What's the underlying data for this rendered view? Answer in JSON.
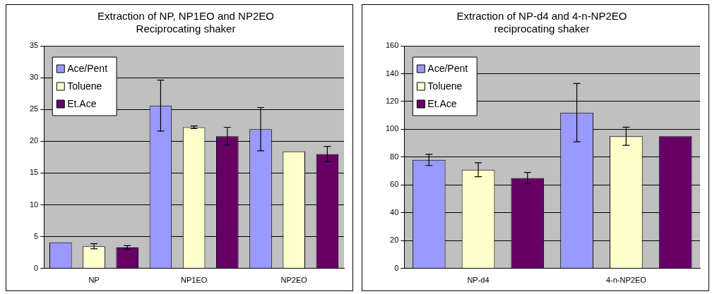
{
  "chart_data": [
    {
      "type": "bar",
      "title": "Extraction of NP, NP1EO and NP2EO",
      "subtitle": "Reciprocating shaker",
      "categories": [
        "NP",
        "NP1EO",
        "NP2EO"
      ],
      "ylim": [
        0,
        35
      ],
      "yticks": [
        0,
        5,
        10,
        15,
        20,
        25,
        30,
        35
      ],
      "grid": "y",
      "legend": "top left",
      "series": [
        {
          "name": "Ace/Pent",
          "color": "#9999ff",
          "values": [
            4.1,
            25.6,
            21.9
          ],
          "errors": [
            null,
            4,
            3.4
          ]
        },
        {
          "name": "Toluene",
          "color": "#ffffcc",
          "values": [
            3.5,
            22.2,
            18.4
          ],
          "errors": [
            0.4,
            0.2,
            null
          ]
        },
        {
          "name": "Et.Ace",
          "color": "#660066",
          "values": [
            3.3,
            20.8,
            18.0
          ],
          "errors": [
            0.3,
            1.4,
            1.2
          ]
        }
      ]
    },
    {
      "type": "bar",
      "title": "Extraction of NP-d4 and 4-n-NP2EO",
      "subtitle": "reciprocating shaker",
      "categories": [
        "NP-d4",
        "4-n-NP2EO"
      ],
      "ylim": [
        0,
        160
      ],
      "yticks": [
        0,
        20,
        40,
        60,
        80,
        100,
        120,
        140,
        160
      ],
      "grid": "y",
      "legend": "top left",
      "series": [
        {
          "name": "Ace/Pent",
          "color": "#9999ff",
          "values": [
            78,
            112
          ],
          "errors": [
            4,
            21
          ]
        },
        {
          "name": "Toluene",
          "color": "#ffffcc",
          "values": [
            71,
            95
          ],
          "errors": [
            5,
            6.5
          ]
        },
        {
          "name": "Et.Ace",
          "color": "#660066",
          "values": [
            65,
            95
          ],
          "errors": [
            4,
            null
          ]
        }
      ]
    }
  ]
}
